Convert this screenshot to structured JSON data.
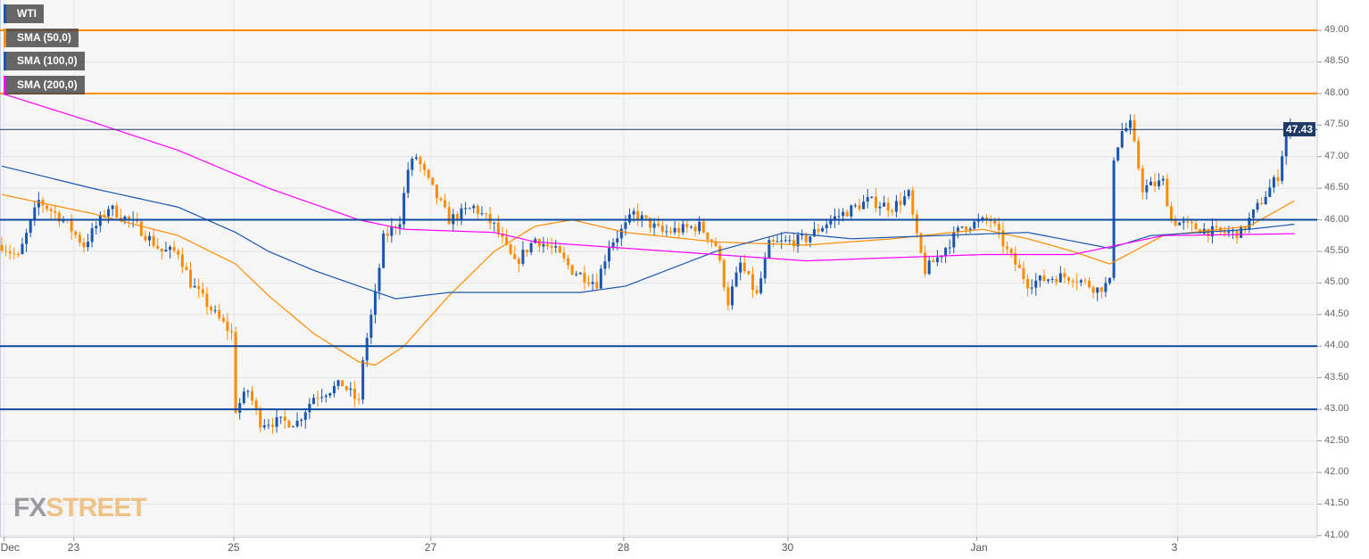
{
  "legend": [
    {
      "label": "WTI",
      "color": "#1a56b0"
    },
    {
      "label": "SMA (50,0)",
      "color": "#ff8c00"
    },
    {
      "label": "SMA (100,0)",
      "color": "#1a56b0"
    },
    {
      "label": "SMA (200,0)",
      "color": "#ff00ff"
    }
  ],
  "watermark": {
    "fx": "FX",
    "street": "STREET"
  },
  "chart_data": {
    "type": "candlestick",
    "title": "WTI",
    "x_range": [
      0,
      321
    ],
    "ylim": [
      41.0,
      49.25
    ],
    "y_ticks": [
      "49.00",
      "48.50",
      "48.00",
      "47.50",
      "47.00",
      "46.50",
      "46.00",
      "45.50",
      "45.00",
      "44.50",
      "44.00",
      "43.50",
      "43.00",
      "42.50",
      "42.00",
      "41.50",
      "41.00"
    ],
    "x_ticks": [
      {
        "bar": 1,
        "label": "Dec"
      },
      {
        "bar": 18,
        "label": "23"
      },
      {
        "bar": 57,
        "label": "25"
      },
      {
        "bar": 105,
        "label": "27"
      },
      {
        "bar": 152,
        "label": "28"
      },
      {
        "bar": 192,
        "label": "30"
      },
      {
        "bar": 238,
        "label": "Jan"
      },
      {
        "bar": 287,
        "label": "3"
      }
    ],
    "last_price": "47.43",
    "horizontal_levels": [
      {
        "value": 49.0,
        "color": "#ff8c00"
      },
      {
        "value": 48.0,
        "color": "#ff8c00"
      },
      {
        "value": 46.0,
        "color": "#0d4a9e"
      },
      {
        "value": 44.0,
        "color": "#0d4a9e"
      },
      {
        "value": 43.0,
        "color": "#0d4a9e"
      }
    ],
    "up_color": "#1a56b0",
    "down_color": "#ff8c00",
    "price_path": [
      [
        0,
        45.6
      ],
      [
        4,
        45.4
      ],
      [
        9,
        46.3
      ],
      [
        15,
        46.0
      ],
      [
        20,
        45.6
      ],
      [
        26,
        46.2
      ],
      [
        33,
        45.9
      ],
      [
        39,
        45.5
      ],
      [
        43,
        45.5
      ],
      [
        46,
        45.0
      ],
      [
        52,
        44.5
      ],
      [
        56,
        44.2
      ],
      [
        57,
        43.0
      ],
      [
        60,
        43.3
      ],
      [
        63,
        42.8
      ],
      [
        72,
        42.8
      ],
      [
        76,
        43.2
      ],
      [
        83,
        43.4
      ],
      [
        87,
        43.1
      ],
      [
        88,
        43.8
      ],
      [
        91,
        44.8
      ],
      [
        93,
        45.7
      ],
      [
        97,
        46.0
      ],
      [
        99,
        46.8
      ],
      [
        101,
        47.0
      ],
      [
        104,
        46.6
      ],
      [
        109,
        46.0
      ],
      [
        115,
        46.2
      ],
      [
        120,
        45.9
      ],
      [
        125,
        45.3
      ],
      [
        130,
        45.7
      ],
      [
        135,
        45.5
      ],
      [
        139,
        45.2
      ],
      [
        145,
        45.0
      ],
      [
        148,
        45.6
      ],
      [
        152,
        45.9
      ],
      [
        154,
        46.1
      ],
      [
        161,
        45.8
      ],
      [
        170,
        45.9
      ],
      [
        174,
        45.6
      ],
      [
        177,
        44.7
      ],
      [
        180,
        45.3
      ],
      [
        184,
        44.8
      ],
      [
        187,
        45.6
      ],
      [
        196,
        45.7
      ],
      [
        202,
        46.0
      ],
      [
        211,
        46.3
      ],
      [
        217,
        46.2
      ],
      [
        221,
        46.4
      ],
      [
        223,
        45.7
      ],
      [
        225,
        45.2
      ],
      [
        228,
        45.4
      ],
      [
        234,
        45.9
      ],
      [
        241,
        46.0
      ],
      [
        245,
        45.5
      ],
      [
        250,
        45.0
      ],
      [
        257,
        45.1
      ],
      [
        261,
        45.1
      ],
      [
        267,
        44.9
      ],
      [
        270,
        45.0
      ],
      [
        271,
        47.0
      ],
      [
        273,
        47.4
      ],
      [
        275,
        47.5
      ],
      [
        278,
        46.5
      ],
      [
        283,
        46.6
      ],
      [
        285,
        46.0
      ],
      [
        289,
        45.9
      ],
      [
        296,
        45.8
      ],
      [
        302,
        45.8
      ],
      [
        307,
        46.3
      ],
      [
        311,
        46.7
      ],
      [
        313,
        47.4
      ],
      [
        315,
        47.43
      ]
    ],
    "series": [
      {
        "name": "SMA (50,0)",
        "color": "#ff8c00",
        "points": [
          [
            0,
            46.4
          ],
          [
            22,
            46.1
          ],
          [
            43,
            45.75
          ],
          [
            57,
            45.3
          ],
          [
            65,
            44.8
          ],
          [
            76,
            44.2
          ],
          [
            87,
            43.75
          ],
          [
            91,
            43.7
          ],
          [
            98,
            44.0
          ],
          [
            109,
            44.8
          ],
          [
            120,
            45.5
          ],
          [
            130,
            45.9
          ],
          [
            139,
            46.0
          ],
          [
            152,
            45.8
          ],
          [
            174,
            45.65
          ],
          [
            196,
            45.6
          ],
          [
            217,
            45.7
          ],
          [
            239,
            45.85
          ],
          [
            250,
            45.7
          ],
          [
            261,
            45.5
          ],
          [
            270,
            45.3
          ],
          [
            283,
            45.75
          ],
          [
            304,
            45.9
          ],
          [
            315,
            46.3
          ]
        ]
      },
      {
        "name": "SMA (100,0)",
        "color": "#1a56b0",
        "points": [
          [
            0,
            46.85
          ],
          [
            22,
            46.5
          ],
          [
            43,
            46.2
          ],
          [
            57,
            45.8
          ],
          [
            65,
            45.5
          ],
          [
            76,
            45.2
          ],
          [
            87,
            44.95
          ],
          [
            96,
            44.75
          ],
          [
            109,
            44.85
          ],
          [
            141,
            44.85
          ],
          [
            152,
            44.95
          ],
          [
            174,
            45.5
          ],
          [
            191,
            45.8
          ],
          [
            207,
            45.7
          ],
          [
            228,
            45.75
          ],
          [
            250,
            45.8
          ],
          [
            270,
            45.55
          ],
          [
            280,
            45.75
          ],
          [
            304,
            45.85
          ],
          [
            315,
            45.93
          ]
        ]
      },
      {
        "name": "SMA (200,0)",
        "color": "#ff00ff",
        "points": [
          [
            0,
            48.0
          ],
          [
            22,
            47.55
          ],
          [
            43,
            47.1
          ],
          [
            65,
            46.5
          ],
          [
            87,
            46.0
          ],
          [
            98,
            45.85
          ],
          [
            120,
            45.8
          ],
          [
            130,
            45.65
          ],
          [
            152,
            45.55
          ],
          [
            174,
            45.45
          ],
          [
            196,
            45.35
          ],
          [
            217,
            45.4
          ],
          [
            239,
            45.45
          ],
          [
            261,
            45.45
          ],
          [
            272,
            45.6
          ],
          [
            283,
            45.75
          ],
          [
            315,
            45.78
          ]
        ]
      }
    ]
  }
}
